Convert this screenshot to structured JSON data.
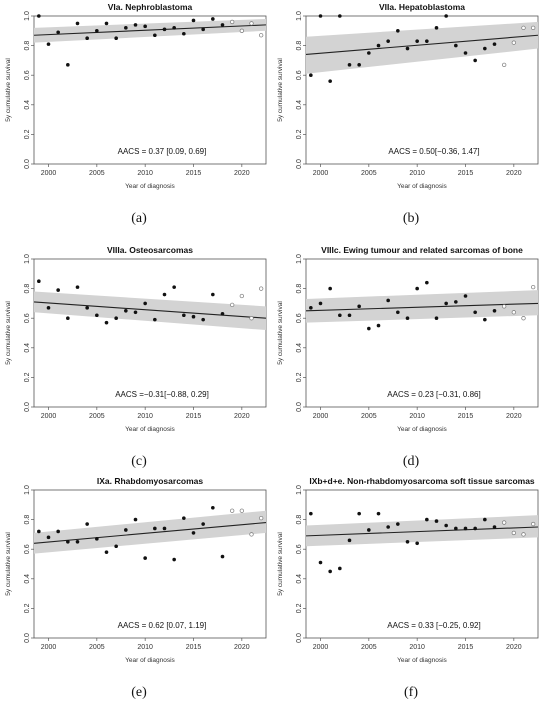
{
  "chart_data": [
    {
      "type": "scatter",
      "title": "VIa. Nephroblastoma",
      "xlabel": "Year of diagnosis",
      "ylabel": "5y cumulative survival",
      "xlim": [
        1998.5,
        2022.5
      ],
      "ylim": [
        0,
        1
      ],
      "xticks": [
        "2000",
        "2005",
        "2010",
        "2015",
        "2020"
      ],
      "yticks": [
        "0.0",
        "0.2",
        "0.4",
        "0.6",
        "0.8",
        "1.0"
      ],
      "annotation": "AACS = 0.37 [0.09, 0.69]",
      "caption": "(a)",
      "trend": {
        "y_start": 0.87,
        "y_end": 0.94,
        "ci_start": [
          0.82,
          0.92
        ],
        "ci_end": [
          0.9,
          0.98
        ]
      },
      "points_filled": {
        "x": [
          1999,
          2000,
          2001,
          2002,
          2003,
          2004,
          2005,
          2006,
          2007,
          2008,
          2009,
          2010,
          2011,
          2012,
          2013,
          2014,
          2015,
          2016,
          2017,
          2018
        ],
        "y": [
          1.0,
          0.81,
          0.89,
          0.67,
          0.95,
          0.85,
          0.9,
          0.95,
          0.85,
          0.92,
          0.94,
          0.93,
          0.87,
          0.91,
          0.92,
          0.88,
          0.97,
          0.91,
          0.98,
          0.94
        ]
      },
      "points_open": {
        "x": [
          2019,
          2020,
          2021,
          2022
        ],
        "y": [
          0.96,
          0.9,
          0.95,
          0.87
        ]
      }
    },
    {
      "type": "scatter",
      "title": "VIIa. Hepatoblastoma",
      "xlabel": "Year of diagnosis",
      "ylabel": "5y cumulative survival",
      "xlim": [
        1998.5,
        2022.5
      ],
      "ylim": [
        0,
        1
      ],
      "xticks": [
        "2000",
        "2005",
        "2010",
        "2015",
        "2020"
      ],
      "yticks": [
        "0.0",
        "0.2",
        "0.4",
        "0.6",
        "0.8",
        "1.0"
      ],
      "annotation": "AACS = 0.50[−0.36, 1.47]",
      "caption": "(b)",
      "trend": {
        "y_start": 0.74,
        "y_end": 0.87,
        "ci_start": [
          0.61,
          0.86
        ],
        "ci_end": [
          0.78,
          0.96
        ]
      },
      "points_filled": {
        "x": [
          1999,
          2000,
          2001,
          2002,
          2003,
          2004,
          2005,
          2006,
          2007,
          2008,
          2009,
          2010,
          2011,
          2012,
          2013,
          2014,
          2015,
          2016,
          2017,
          2018
        ],
        "y": [
          0.6,
          1.0,
          0.56,
          1.0,
          0.67,
          0.67,
          0.75,
          0.8,
          0.83,
          0.9,
          0.78,
          0.83,
          0.83,
          0.92,
          1.0,
          0.8,
          0.75,
          0.7,
          0.78,
          0.81
        ]
      },
      "points_open": {
        "x": [
          2019,
          2020,
          2021,
          2022
        ],
        "y": [
          0.67,
          0.82,
          0.92,
          0.92
        ]
      }
    },
    {
      "type": "scatter",
      "title": "VIIIa. Osteosarcomas",
      "xlabel": "Year of diagnosis",
      "ylabel": "5y cumulative survival",
      "xlim": [
        1998.5,
        2022.5
      ],
      "ylim": [
        0,
        1
      ],
      "xticks": [
        "2000",
        "2005",
        "2010",
        "2015",
        "2020"
      ],
      "yticks": [
        "0.0",
        "0.2",
        "0.4",
        "0.6",
        "0.8",
        "1.0"
      ],
      "annotation": "AACS =−0.31[−0.88, 0.29]",
      "caption": "(c)",
      "trend": {
        "y_start": 0.71,
        "y_end": 0.6,
        "ci_start": [
          0.64,
          0.78
        ],
        "ci_end": [
          0.52,
          0.68
        ]
      },
      "points_filled": {
        "x": [
          1999,
          2000,
          2001,
          2002,
          2003,
          2004,
          2005,
          2006,
          2007,
          2008,
          2009,
          2010,
          2011,
          2012,
          2013,
          2014,
          2015,
          2016,
          2017,
          2018
        ],
        "y": [
          0.85,
          0.67,
          0.79,
          0.6,
          0.81,
          0.67,
          0.62,
          0.57,
          0.6,
          0.65,
          0.64,
          0.7,
          0.59,
          0.76,
          0.81,
          0.62,
          0.61,
          0.59,
          0.76,
          0.63
        ]
      },
      "points_open": {
        "x": [
          2019,
          2020,
          2021,
          2022
        ],
        "y": [
          0.69,
          0.75,
          0.6,
          0.8
        ]
      }
    },
    {
      "type": "scatter",
      "title": "VIIIc. Ewing tumour and related sarcomas of bone",
      "xlabel": "Year of diagnosis",
      "ylabel": "5y cumulative survival",
      "xlim": [
        1998.5,
        2022.5
      ],
      "ylim": [
        0,
        1
      ],
      "xticks": [
        "2000",
        "2005",
        "2010",
        "2015",
        "2020"
      ],
      "yticks": [
        "0.0",
        "0.2",
        "0.4",
        "0.6",
        "0.8",
        "1.0"
      ],
      "annotation": "AACS = 0.23 [−0.31, 0.86]",
      "caption": "(d)",
      "trend": {
        "y_start": 0.65,
        "y_end": 0.7,
        "ci_start": [
          0.57,
          0.73
        ],
        "ci_end": [
          0.62,
          0.79
        ]
      },
      "points_filled": {
        "x": [
          1999,
          2000,
          2001,
          2002,
          2003,
          2004,
          2005,
          2006,
          2007,
          2008,
          2009,
          2010,
          2011,
          2012,
          2013,
          2014,
          2015,
          2016,
          2017,
          2018
        ],
        "y": [
          0.67,
          0.7,
          0.8,
          0.62,
          0.62,
          0.68,
          0.53,
          0.55,
          0.72,
          0.64,
          0.6,
          0.8,
          0.84,
          0.6,
          0.7,
          0.71,
          0.75,
          0.64,
          0.59,
          0.65
        ]
      },
      "points_open": {
        "x": [
          2019,
          2020,
          2021,
          2022
        ],
        "y": [
          0.68,
          0.64,
          0.6,
          0.81
        ]
      }
    },
    {
      "type": "scatter",
      "title": "IXa. Rhabdomyosarcomas",
      "xlabel": "Year of diagnosis",
      "ylabel": "5y cumulative survival",
      "xlim": [
        1998.5,
        2022.5
      ],
      "ylim": [
        0,
        1
      ],
      "xticks": [
        "2000",
        "2005",
        "2010",
        "2015",
        "2020"
      ],
      "yticks": [
        "0.0",
        "0.2",
        "0.4",
        "0.6",
        "0.8",
        "1.0"
      ],
      "annotation": "AACS = 0.62 [0.07, 1.19]",
      "caption": "(e)",
      "trend": {
        "y_start": 0.64,
        "y_end": 0.78,
        "ci_start": [
          0.57,
          0.71
        ],
        "ci_end": [
          0.71,
          0.86
        ]
      },
      "points_filled": {
        "x": [
          1999,
          2000,
          2001,
          2002,
          2003,
          2004,
          2005,
          2006,
          2007,
          2008,
          2009,
          2010,
          2011,
          2012,
          2013,
          2014,
          2015,
          2016,
          2017,
          2018
        ],
        "y": [
          0.72,
          0.68,
          0.72,
          0.65,
          0.65,
          0.77,
          0.67,
          0.58,
          0.62,
          0.73,
          0.8,
          0.54,
          0.74,
          0.74,
          0.53,
          0.81,
          0.71,
          0.77,
          0.88,
          0.55
        ]
      },
      "points_open": {
        "x": [
          2019,
          2020,
          2021,
          2022
        ],
        "y": [
          0.86,
          0.86,
          0.7,
          0.81
        ]
      }
    },
    {
      "type": "scatter",
      "title": "IXb+d+e. Non-rhabdomyosarcoma soft tissue sarcomas",
      "xlabel": "Year of diagnosis",
      "ylabel": "5y cumulative survival",
      "xlim": [
        1998.5,
        2022.5
      ],
      "ylim": [
        0,
        1
      ],
      "xticks": [
        "2000",
        "2005",
        "2010",
        "2015",
        "2020"
      ],
      "yticks": [
        "0.0",
        "0.2",
        "0.4",
        "0.6",
        "0.8",
        "1.0"
      ],
      "annotation": "AACS = 0.33 [−0.25, 0.92]",
      "caption": "(f)",
      "trend": {
        "y_start": 0.69,
        "y_end": 0.75,
        "ci_start": [
          0.62,
          0.76
        ],
        "ci_end": [
          0.68,
          0.83
        ]
      },
      "points_filled": {
        "x": [
          1999,
          2000,
          2001,
          2002,
          2003,
          2004,
          2005,
          2006,
          2007,
          2008,
          2009,
          2010,
          2011,
          2012,
          2013,
          2014,
          2015,
          2016,
          2017,
          2018
        ],
        "y": [
          0.84,
          0.51,
          0.45,
          0.47,
          0.66,
          0.84,
          0.73,
          0.84,
          0.75,
          0.77,
          0.65,
          0.64,
          0.8,
          0.79,
          0.76,
          0.74,
          0.74,
          0.74,
          0.8,
          0.75
        ]
      },
      "points_open": {
        "x": [
          2019,
          2020,
          2021,
          2022
        ],
        "y": [
          0.78,
          0.71,
          0.7,
          0.77
        ]
      }
    }
  ]
}
